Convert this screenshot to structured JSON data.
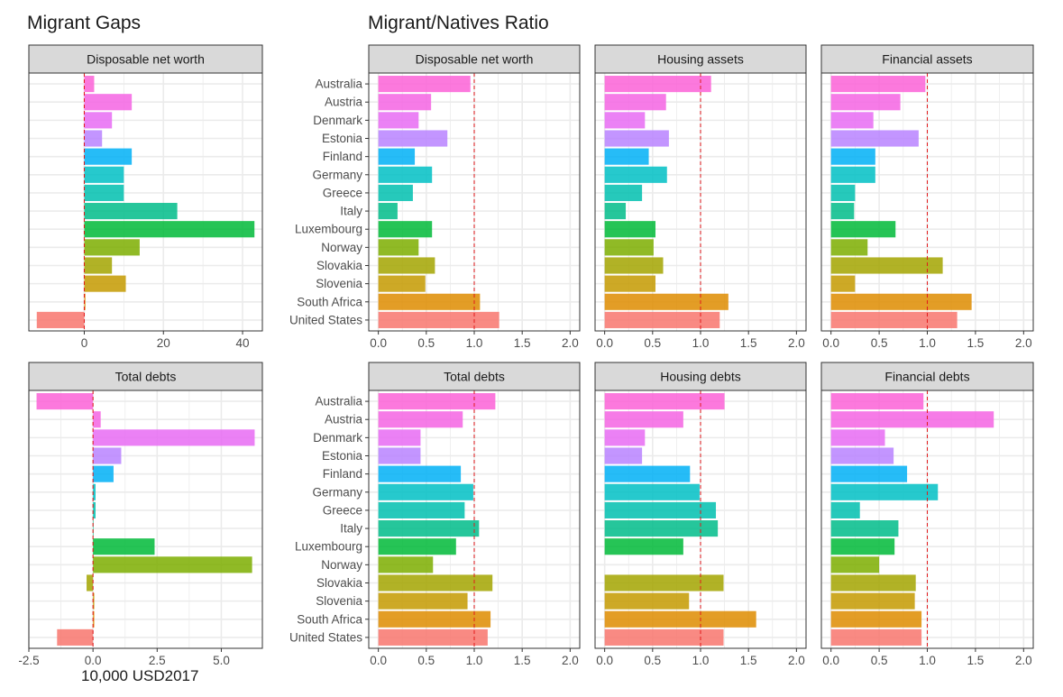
{
  "titles": {
    "left": "Migrant Gaps",
    "right": "Migrant/Natives Ratio"
  },
  "x_axis_title": "10,000 USD2017",
  "chart_data": [
    {
      "type": "bar",
      "orientation": "horizontal",
      "panel": "Disposable net worth",
      "section": "Migrant Gaps",
      "categories": [
        "Australia",
        "Austria",
        "Denmark",
        "Estonia",
        "Finland",
        "Germany",
        "Greece",
        "Italy",
        "Luxembourg",
        "Norway",
        "Slovakia",
        "Slovenia",
        "South Africa",
        "United States"
      ],
      "values": [
        2.5,
        12,
        7,
        4.5,
        12,
        10,
        10,
        23.5,
        43,
        14,
        7,
        10.5,
        0.3,
        -12
      ],
      "xlim": [
        -14,
        45
      ],
      "xticks": [
        0,
        20,
        40
      ],
      "xtick_labels": [
        "0",
        "20",
        "40"
      ],
      "reference_line": 0,
      "show_category_labels": false
    },
    {
      "type": "bar",
      "orientation": "horizontal",
      "panel": "Total debts",
      "section": "Migrant Gaps",
      "categories": [
        "Australia",
        "Austria",
        "Denmark",
        "Estonia",
        "Finland",
        "Germany",
        "Greece",
        "Italy",
        "Luxembourg",
        "Norway",
        "Slovakia",
        "Slovenia",
        "South Africa",
        "United States"
      ],
      "values": [
        -2.2,
        0.3,
        6.3,
        1.1,
        0.8,
        0.1,
        0.1,
        0.02,
        2.4,
        6.2,
        -0.25,
        0.05,
        0.05,
        -1.4
      ],
      "xlim": [
        -2.5,
        6.6
      ],
      "xticks": [
        -2.5,
        0,
        2.5,
        5
      ],
      "xtick_labels": [
        "-2.5",
        "0.0",
        "2.5",
        "5.0"
      ],
      "reference_line": 0,
      "show_category_labels": false
    },
    {
      "type": "bar",
      "orientation": "horizontal",
      "panel": "Disposable net worth",
      "section": "Migrant/Natives Ratio",
      "categories": [
        "Australia",
        "Austria",
        "Denmark",
        "Estonia",
        "Finland",
        "Germany",
        "Greece",
        "Italy",
        "Luxembourg",
        "Norway",
        "Slovakia",
        "Slovenia",
        "South Africa",
        "United States"
      ],
      "values": [
        0.96,
        0.55,
        0.42,
        0.72,
        0.38,
        0.56,
        0.36,
        0.2,
        0.56,
        0.42,
        0.59,
        0.49,
        1.06,
        1.26
      ],
      "xlim": [
        -0.1,
        2.1
      ],
      "xticks": [
        0,
        0.5,
        1,
        1.5,
        2
      ],
      "xtick_labels": [
        "0.0",
        "0.5",
        "1.0",
        "1.5",
        "2.0"
      ],
      "reference_line": 1,
      "show_category_labels": true
    },
    {
      "type": "bar",
      "orientation": "horizontal",
      "panel": "Housing assets",
      "section": "Migrant/Natives Ratio",
      "categories": [
        "Australia",
        "Austria",
        "Denmark",
        "Estonia",
        "Finland",
        "Germany",
        "Greece",
        "Italy",
        "Luxembourg",
        "Norway",
        "Slovakia",
        "Slovenia",
        "South Africa",
        "United States"
      ],
      "values": [
        1.11,
        0.64,
        0.42,
        0.67,
        0.46,
        0.65,
        0.39,
        0.22,
        0.53,
        0.51,
        0.61,
        0.53,
        1.29,
        1.2
      ],
      "xlim": [
        -0.1,
        2.1
      ],
      "xticks": [
        0,
        0.5,
        1,
        1.5,
        2
      ],
      "xtick_labels": [
        "0.0",
        "0.5",
        "1.0",
        "1.5",
        "2.0"
      ],
      "reference_line": 1,
      "show_category_labels": false
    },
    {
      "type": "bar",
      "orientation": "horizontal",
      "panel": "Financial assets",
      "section": "Migrant/Natives Ratio",
      "categories": [
        "Australia",
        "Austria",
        "Denmark",
        "Estonia",
        "Finland",
        "Germany",
        "Greece",
        "Italy",
        "Luxembourg",
        "Norway",
        "Slovakia",
        "Slovenia",
        "South Africa",
        "United States"
      ],
      "values": [
        0.98,
        0.72,
        0.44,
        0.91,
        0.46,
        0.46,
        0.25,
        0.24,
        0.67,
        0.38,
        1.16,
        0.25,
        1.46,
        1.31
      ],
      "xlim": [
        -0.1,
        2.1
      ],
      "xticks": [
        0,
        0.5,
        1,
        1.5,
        2
      ],
      "xtick_labels": [
        "0.0",
        "0.5",
        "1.0",
        "1.5",
        "2.0"
      ],
      "reference_line": 1,
      "show_category_labels": false
    },
    {
      "type": "bar",
      "orientation": "horizontal",
      "panel": "Total debts",
      "section": "Migrant/Natives Ratio",
      "categories": [
        "Australia",
        "Austria",
        "Denmark",
        "Estonia",
        "Finland",
        "Germany",
        "Greece",
        "Italy",
        "Luxembourg",
        "Norway",
        "Slovakia",
        "Slovenia",
        "South Africa",
        "United States"
      ],
      "values": [
        1.22,
        0.88,
        0.44,
        0.44,
        0.86,
        0.99,
        0.9,
        1.05,
        0.81,
        0.57,
        1.19,
        0.93,
        1.17,
        1.14
      ],
      "xlim": [
        -0.1,
        2.1
      ],
      "xticks": [
        0,
        0.5,
        1,
        1.5,
        2
      ],
      "xtick_labels": [
        "0.0",
        "0.5",
        "1.0",
        "1.5",
        "2.0"
      ],
      "reference_line": 1,
      "show_category_labels": true
    },
    {
      "type": "bar",
      "orientation": "horizontal",
      "panel": "Housing debts",
      "section": "Migrant/Natives Ratio",
      "categories": [
        "Australia",
        "Austria",
        "Denmark",
        "Estonia",
        "Finland",
        "Germany",
        "Greece",
        "Italy",
        "Luxembourg",
        "Norway",
        "Slovakia",
        "Slovenia",
        "South Africa",
        "United States"
      ],
      "values": [
        1.25,
        0.82,
        0.42,
        0.39,
        0.89,
        0.99,
        1.16,
        1.18,
        0.82,
        null,
        1.24,
        0.88,
        1.58,
        1.24
      ],
      "xlim": [
        -0.1,
        2.1
      ],
      "xticks": [
        0,
        0.5,
        1,
        1.5,
        2
      ],
      "xtick_labels": [
        "0.0",
        "0.5",
        "1.0",
        "1.5",
        "2.0"
      ],
      "reference_line": 1,
      "show_category_labels": false
    },
    {
      "type": "bar",
      "orientation": "horizontal",
      "panel": "Financial debts",
      "section": "Migrant/Natives Ratio",
      "categories": [
        "Australia",
        "Austria",
        "Denmark",
        "Estonia",
        "Finland",
        "Germany",
        "Greece",
        "Italy",
        "Luxembourg",
        "Norway",
        "Slovakia",
        "Slovenia",
        "South Africa",
        "United States"
      ],
      "values": [
        0.96,
        1.69,
        0.56,
        0.65,
        0.79,
        1.11,
        0.3,
        0.7,
        0.66,
        0.5,
        0.88,
        0.87,
        0.94,
        0.94
      ],
      "xlim": [
        -0.1,
        2.1
      ],
      "xticks": [
        0,
        0.5,
        1,
        1.5,
        2
      ],
      "xtick_labels": [
        "0.0",
        "0.5",
        "1.0",
        "1.5",
        "2.0"
      ],
      "reference_line": 1,
      "show_category_labels": false
    }
  ],
  "country_colors": [
    "#fb61d7",
    "#f564e3",
    "#e76bf3",
    "#b983ff",
    "#00b0f6",
    "#00bfc4",
    "#00c0af",
    "#00bc89",
    "#00ba38",
    "#7cae00",
    "#a3a500",
    "#c49a00",
    "#de8c00",
    "#f8766d"
  ],
  "colors": {
    "panel_border": "#333333",
    "strip_fill": "#d9d9d9",
    "grid": "#ebebeb",
    "reference_line": "#e31a1c"
  }
}
